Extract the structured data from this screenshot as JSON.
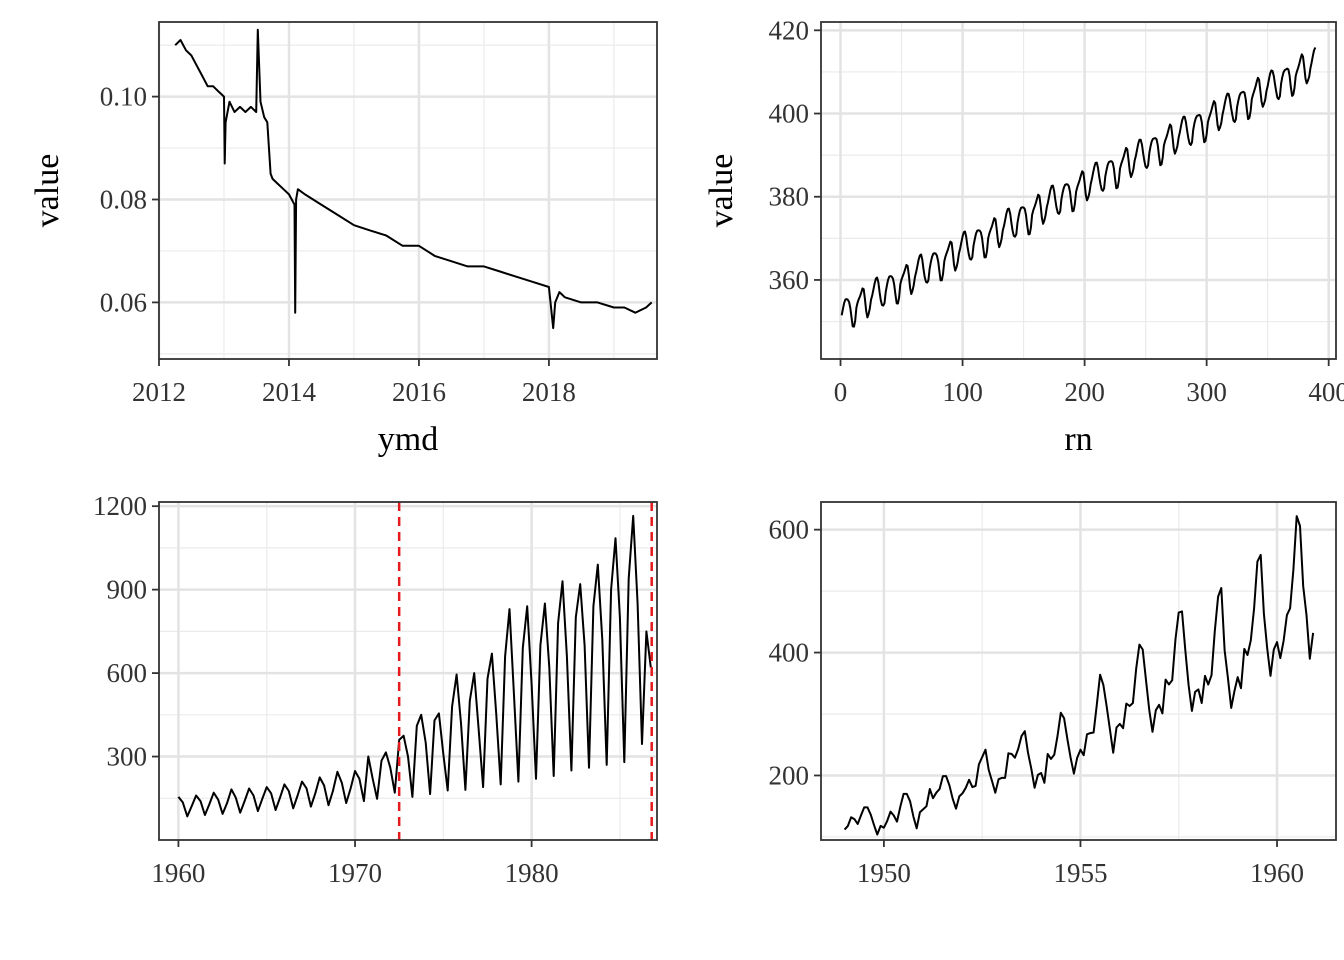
{
  "chart_data": [
    {
      "type": "line",
      "xlabel": "ymd",
      "ylabel": "value",
      "x_type": "date",
      "xlim": [
        "2012-01-01",
        "2019-08-31"
      ],
      "ylim": [
        0.049,
        0.1145
      ],
      "x_ticks": [
        {
          "value": "2012-01-01",
          "label": "2012"
        },
        {
          "value": "2014-01-01",
          "label": "2014"
        },
        {
          "value": "2016-01-01",
          "label": "2016"
        },
        {
          "value": "2018-01-01",
          "label": "2018"
        }
      ],
      "y_ticks": [
        {
          "value": 0.06,
          "label": "0.06"
        },
        {
          "value": 0.08,
          "label": "0.08"
        },
        {
          "value": 0.1,
          "label": "0.10"
        }
      ],
      "grid": true,
      "series": [
        {
          "x": [
            "2012-04-01",
            "2012-05-01",
            "2012-06-01",
            "2012-07-01",
            "2012-08-01",
            "2012-09-01",
            "2012-10-01",
            "2012-11-01",
            "2012-12-01",
            "2013-01-01",
            "2013-01-05",
            "2013-01-10",
            "2013-02-01",
            "2013-03-01",
            "2013-04-01",
            "2013-05-01",
            "2013-06-01",
            "2013-07-01",
            "2013-07-10",
            "2013-07-25",
            "2013-08-15",
            "2013-09-01",
            "2013-09-20",
            "2013-10-01",
            "2013-11-01",
            "2013-12-01",
            "2014-01-01",
            "2014-02-01",
            "2014-02-05",
            "2014-02-10",
            "2014-02-20",
            "2014-04-01",
            "2014-07-01",
            "2014-10-01",
            "2015-01-01",
            "2015-04-01",
            "2015-07-01",
            "2015-10-01",
            "2016-01-01",
            "2016-04-01",
            "2016-07-01",
            "2016-10-01",
            "2017-01-01",
            "2017-04-01",
            "2017-07-01",
            "2017-10-01",
            "2018-01-01",
            "2018-01-25",
            "2018-02-05",
            "2018-03-01",
            "2018-04-01",
            "2018-07-01",
            "2018-10-01",
            "2019-01-01",
            "2019-03-01",
            "2019-05-01",
            "2019-07-01",
            "2019-08-01"
          ],
          "y": [
            0.11,
            0.111,
            0.109,
            0.108,
            0.106,
            0.104,
            0.102,
            0.102,
            0.101,
            0.1,
            0.087,
            0.095,
            0.099,
            0.097,
            0.098,
            0.097,
            0.098,
            0.097,
            0.113,
            0.099,
            0.096,
            0.095,
            0.085,
            0.084,
            0.083,
            0.082,
            0.081,
            0.079,
            0.058,
            0.08,
            0.082,
            0.081,
            0.079,
            0.077,
            0.075,
            0.074,
            0.073,
            0.071,
            0.071,
            0.069,
            0.068,
            0.067,
            0.067,
            0.066,
            0.065,
            0.064,
            0.063,
            0.055,
            0.06,
            0.062,
            0.061,
            0.06,
            0.06,
            0.059,
            0.059,
            0.058,
            0.059,
            0.06
          ]
        }
      ]
    },
    {
      "type": "line",
      "xlabel": "rn",
      "ylabel": "value",
      "xlim": [
        -16,
        406
      ],
      "ylim": [
        341,
        422
      ],
      "x_ticks": [
        {
          "value": 0,
          "label": "0"
        },
        {
          "value": 100,
          "label": "100"
        },
        {
          "value": 200,
          "label": "200"
        },
        {
          "value": 300,
          "label": "300"
        },
        {
          "value": 400,
          "label": "400"
        }
      ],
      "y_ticks": [
        {
          "value": 360,
          "label": "360"
        },
        {
          "value": 380,
          "label": "380"
        },
        {
          "value": 400,
          "label": "400"
        },
        {
          "value": 420,
          "label": "420"
        }
      ],
      "grid": true,
      "series": [
        {
          "model": "seasonal-trend",
          "x_start": 1,
          "x_end": 389,
          "start_level": 351.5,
          "end_level": 411.5,
          "amplitude": 3.8,
          "period": 12
        }
      ]
    },
    {
      "type": "line",
      "xlabel": "",
      "ylabel": "",
      "xlim": [
        1958.9,
        1987.1
      ],
      "ylim": [
        0,
        1215
      ],
      "x_ticks": [
        {
          "value": 1960,
          "label": "1960"
        },
        {
          "value": 1970,
          "label": "1970"
        },
        {
          "value": 1980,
          "label": "1980"
        }
      ],
      "y_ticks": [
        {
          "value": 300,
          "label": "300"
        },
        {
          "value": 600,
          "label": "600"
        },
        {
          "value": 900,
          "label": "900"
        },
        {
          "value": 1200,
          "label": "1200"
        }
      ],
      "grid": true,
      "reference_lines": [
        {
          "orientation": "vertical",
          "x": 1972.5,
          "color": "#e41a1c",
          "style": "dashed"
        },
        {
          "orientation": "vertical",
          "x": 1986.8,
          "color": "#e41a1c",
          "style": "dashed"
        }
      ],
      "series": [
        {
          "x": [
            1960.0,
            1960.25,
            1960.5,
            1960.75,
            1961.0,
            1961.25,
            1961.5,
            1961.75,
            1962.0,
            1962.25,
            1962.5,
            1962.75,
            1963.0,
            1963.25,
            1963.5,
            1963.75,
            1964.0,
            1964.25,
            1964.5,
            1964.75,
            1965.0,
            1965.25,
            1965.5,
            1965.75,
            1966.0,
            1966.25,
            1966.5,
            1966.75,
            1967.0,
            1967.25,
            1967.5,
            1967.75,
            1968.0,
            1968.25,
            1968.5,
            1968.75,
            1969.0,
            1969.25,
            1969.5,
            1969.75,
            1970.0,
            1970.25,
            1970.5,
            1970.75,
            1971.0,
            1971.25,
            1971.5,
            1971.75,
            1972.0,
            1972.25,
            1972.5,
            1972.75,
            1973.0,
            1973.25,
            1973.5,
            1973.75,
            1974.0,
            1974.25,
            1974.5,
            1974.75,
            1975.0,
            1975.25,
            1975.5,
            1975.75,
            1976.0,
            1976.25,
            1976.5,
            1976.75,
            1977.0,
            1977.25,
            1977.5,
            1977.75,
            1978.0,
            1978.25,
            1978.5,
            1978.75,
            1979.0,
            1979.25,
            1979.5,
            1979.75,
            1980.0,
            1980.25,
            1980.5,
            1980.75,
            1981.0,
            1981.25,
            1981.5,
            1981.75,
            1982.0,
            1982.25,
            1982.5,
            1982.75,
            1983.0,
            1983.25,
            1983.5,
            1983.75,
            1984.0,
            1984.25,
            1984.5,
            1984.75,
            1985.0,
            1985.25,
            1985.5,
            1985.75,
            1986.0,
            1986.25,
            1986.5,
            1986.75
          ],
          "y": [
            155,
            135,
            85,
            122,
            160,
            140,
            90,
            128,
            170,
            145,
            94,
            132,
            182,
            152,
            98,
            140,
            185,
            160,
            104,
            148,
            190,
            168,
            108,
            152,
            200,
            176,
            114,
            160,
            210,
            186,
            120,
            168,
            225,
            196,
            125,
            176,
            245,
            206,
            133,
            185,
            248,
            220,
            140,
            300,
            220,
            148,
            285,
            315,
            260,
            170,
            360,
            375,
            300,
            155,
            410,
            450,
            350,
            165,
            430,
            455,
            310,
            178,
            480,
            595,
            420,
            180,
            500,
            600,
            400,
            190,
            580,
            670,
            450,
            200,
            660,
            830,
            520,
            210,
            690,
            840,
            560,
            220,
            700,
            850,
            620,
            230,
            780,
            930,
            660,
            250,
            800,
            920,
            700,
            260,
            840,
            990,
            720,
            270,
            900,
            1085,
            800,
            280,
            940,
            1165,
            850,
            345,
            750,
            620
          ]
        }
      ]
    },
    {
      "type": "line",
      "xlabel": "",
      "ylabel": "",
      "xlim": [
        1948.4,
        1961.5
      ],
      "ylim": [
        95,
        645
      ],
      "x_ticks": [
        {
          "value": 1950,
          "label": "1950"
        },
        {
          "value": 1955,
          "label": "1955"
        },
        {
          "value": 1960,
          "label": "1960"
        }
      ],
      "y_ticks": [
        {
          "value": 200,
          "label": "200"
        },
        {
          "value": 400,
          "label": "400"
        },
        {
          "value": 600,
          "label": "600"
        }
      ],
      "grid": true,
      "series": [
        {
          "x_start": 1949.0,
          "x_step": 0.08333333,
          "y": [
            112,
            118,
            132,
            129,
            121,
            135,
            148,
            148,
            136,
            119,
            104,
            118,
            115,
            126,
            141,
            135,
            125,
            149,
            170,
            170,
            158,
            133,
            114,
            140,
            145,
            150,
            178,
            163,
            172,
            178,
            199,
            199,
            184,
            162,
            146,
            166,
            171,
            180,
            193,
            181,
            183,
            218,
            230,
            242,
            209,
            191,
            172,
            194,
            196,
            196,
            236,
            235,
            229,
            243,
            264,
            272,
            237,
            211,
            180,
            201,
            204,
            188,
            235,
            227,
            234,
            264,
            302,
            293,
            259,
            229,
            203,
            229,
            242,
            233,
            267,
            269,
            270,
            315,
            364,
            347,
            312,
            274,
            237,
            278,
            284,
            277,
            317,
            313,
            318,
            374,
            413,
            405,
            355,
            306,
            271,
            306,
            315,
            301,
            356,
            348,
            355,
            422,
            465,
            467,
            404,
            347,
            305,
            336,
            340,
            318,
            362,
            348,
            363,
            435,
            491,
            505,
            404,
            359,
            310,
            337,
            360,
            342,
            406,
            396,
            420,
            472,
            548,
            559,
            463,
            407,
            362,
            405,
            417,
            391,
            419,
            461,
            472,
            535,
            622,
            606,
            508,
            461,
            390,
            432
          ]
        }
      ]
    }
  ]
}
